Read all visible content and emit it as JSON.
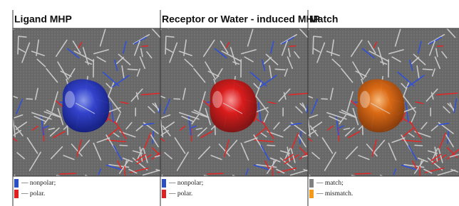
{
  "panels": [
    {
      "title": "Ligand MHP",
      "legend": [
        {
          "label": "— nonpolar;",
          "color": "#2a4fc4"
        },
        {
          "label": "— polar.",
          "color": "#e02020"
        }
      ]
    },
    {
      "title": "Receptor or Water - induced MHP",
      "legend": [
        {
          "label": "— nonpolar;",
          "color": "#2a4fc4"
        },
        {
          "label": "— polar.",
          "color": "#e02020"
        }
      ]
    },
    {
      "title": "Match",
      "legend": [
        {
          "label": "— match;",
          "color": "#808080"
        },
        {
          "label": "— mismatch.",
          "color": "#f39a1a"
        }
      ]
    }
  ]
}
